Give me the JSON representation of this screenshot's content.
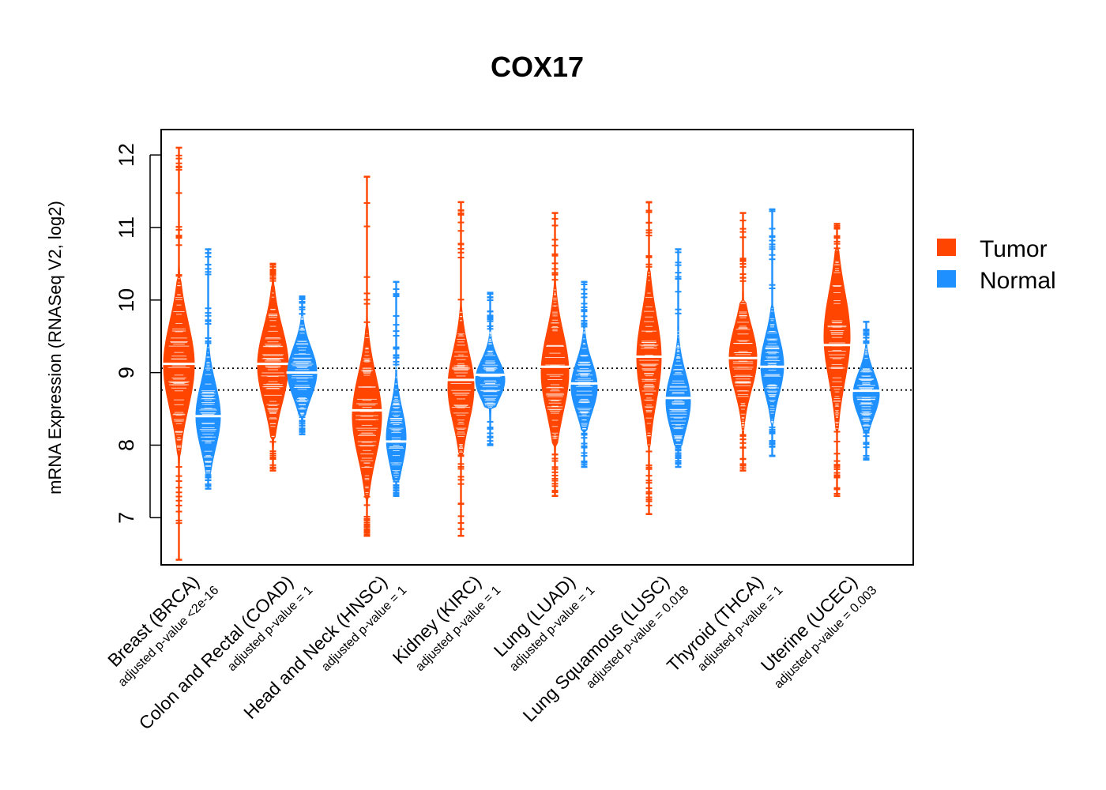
{
  "colors": {
    "tumor": "#FF4500",
    "normal": "#1E90FF",
    "median": "#ffffff",
    "frame": "#000000"
  },
  "chart_data": {
    "type": "violin",
    "title": "COX17",
    "ylabel": "mRNA Expression (RNASeq V2, log2)",
    "ylim": [
      6.35,
      12.35
    ],
    "yticks": [
      7,
      8,
      9,
      10,
      11,
      12
    ],
    "reference_lines": [
      9.06,
      8.76
    ],
    "legend": {
      "position": "right",
      "entries": [
        "Tumor",
        "Normal"
      ]
    },
    "series_names": [
      "Tumor",
      "Normal"
    ],
    "categories": [
      {
        "label": "Breast (BRCA)",
        "pvalue": "adjusted p-value <2e-16",
        "tumor": {
          "median": 9.12,
          "min": 6.42,
          "max": 12.1,
          "core": [
            7.9,
            10.3
          ],
          "mode": 9.1,
          "width": 1.0
        },
        "normal": {
          "median": 8.4,
          "min": 7.4,
          "max": 10.7,
          "core": [
            7.6,
            9.4
          ],
          "mode": 8.4,
          "width": 0.8
        }
      },
      {
        "label": "Colon and Rectal (COAD)",
        "pvalue": "adjusted p-value = 1",
        "tumor": {
          "median": 9.12,
          "min": 7.65,
          "max": 10.5,
          "core": [
            8.1,
            10.2
          ],
          "mode": 9.1,
          "width": 1.0
        },
        "normal": {
          "median": 9.0,
          "min": 8.15,
          "max": 10.05,
          "core": [
            8.4,
            9.8
          ],
          "mode": 9.0,
          "width": 0.95
        }
      },
      {
        "label": "Head and Neck (HNSC)",
        "pvalue": "adjusted p-value = 1",
        "tumor": {
          "median": 8.48,
          "min": 6.75,
          "max": 11.7,
          "core": [
            7.3,
            9.6
          ],
          "mode": 8.4,
          "width": 0.95
        },
        "normal": {
          "median": 8.05,
          "min": 7.3,
          "max": 10.25,
          "core": [
            7.5,
            9.1
          ],
          "mode": 8.1,
          "width": 0.65
        }
      },
      {
        "label": "Kidney (KIRC)",
        "pvalue": "adjusted p-value = 1",
        "tumor": {
          "median": 8.9,
          "min": 6.75,
          "max": 11.35,
          "core": [
            7.9,
            9.9
          ],
          "mode": 8.8,
          "width": 0.85
        },
        "normal": {
          "median": 8.97,
          "min": 8.0,
          "max": 10.1,
          "core": [
            8.5,
            9.6
          ],
          "mode": 8.9,
          "width": 0.95
        }
      },
      {
        "label": "Lung (LUAD)",
        "pvalue": "adjusted p-value = 1",
        "tumor": {
          "median": 9.08,
          "min": 7.3,
          "max": 11.2,
          "core": [
            8.0,
            10.2
          ],
          "mode": 9.0,
          "width": 0.9
        },
        "normal": {
          "median": 8.85,
          "min": 7.7,
          "max": 10.25,
          "core": [
            8.2,
            9.6
          ],
          "mode": 8.8,
          "width": 0.85
        }
      },
      {
        "label": "Lung Squamous (LUSC)",
        "pvalue": "adjusted p-value = 0.018",
        "tumor": {
          "median": 9.22,
          "min": 7.05,
          "max": 11.35,
          "core": [
            8.0,
            10.4
          ],
          "mode": 9.2,
          "width": 0.8
        },
        "normal": {
          "median": 8.65,
          "min": 7.7,
          "max": 10.7,
          "core": [
            8.0,
            9.6
          ],
          "mode": 8.6,
          "width": 0.8
        }
      },
      {
        "label": "Thyroid (THCA)",
        "pvalue": "adjusted p-value = 1",
        "tumor": {
          "median": 9.2,
          "min": 7.65,
          "max": 11.2,
          "core": [
            8.2,
            10.0
          ],
          "mode": 9.2,
          "width": 0.9
        },
        "normal": {
          "median": 9.08,
          "min": 7.85,
          "max": 11.25,
          "core": [
            8.3,
            9.9
          ],
          "mode": 9.1,
          "width": 0.75
        }
      },
      {
        "label": "Uterine (UCEC)",
        "pvalue": "adjusted p-value = 0.003",
        "tumor": {
          "median": 9.38,
          "min": 7.3,
          "max": 11.05,
          "core": [
            8.2,
            10.7
          ],
          "mode": 9.5,
          "width": 0.85
        },
        "normal": {
          "median": 8.75,
          "min": 7.8,
          "max": 9.7,
          "core": [
            8.2,
            9.4
          ],
          "mode": 8.7,
          "width": 0.85
        }
      }
    ]
  }
}
